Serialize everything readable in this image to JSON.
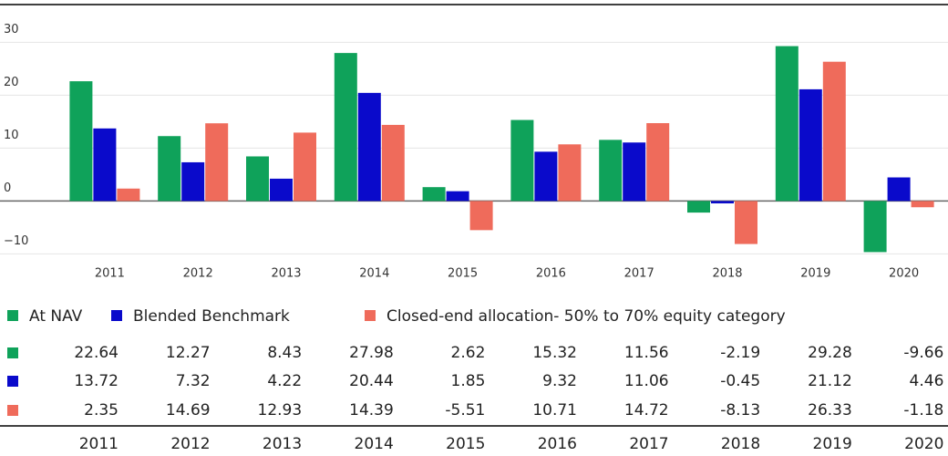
{
  "chart_data": {
    "type": "bar",
    "categories": [
      "2011",
      "2012",
      "2013",
      "2014",
      "2015",
      "2016",
      "2017",
      "2018",
      "2019",
      "2020"
    ],
    "series": [
      {
        "name": "At NAV",
        "color": "#0fa25a",
        "values": [
          22.64,
          12.27,
          8.43,
          27.98,
          2.62,
          15.32,
          11.56,
          -2.19,
          29.28,
          -9.66
        ]
      },
      {
        "name": "Blended Benchmark",
        "color": "#0a0acb",
        "values": [
          13.72,
          7.32,
          4.22,
          20.44,
          1.85,
          9.32,
          11.06,
          -0.45,
          21.12,
          4.46
        ]
      },
      {
        "name": "Closed-end allocation- 50% to 70% equity category",
        "color": "#ef6b5b",
        "values": [
          2.35,
          14.69,
          12.93,
          14.39,
          -5.51,
          10.71,
          14.72,
          -8.13,
          26.33,
          -1.18
        ]
      }
    ],
    "ylim": [
      -12,
      33
    ],
    "yticks": [
      {
        "value": -10,
        "label": "−10"
      },
      0,
      10,
      20,
      30
    ],
    "grid": true
  }
}
